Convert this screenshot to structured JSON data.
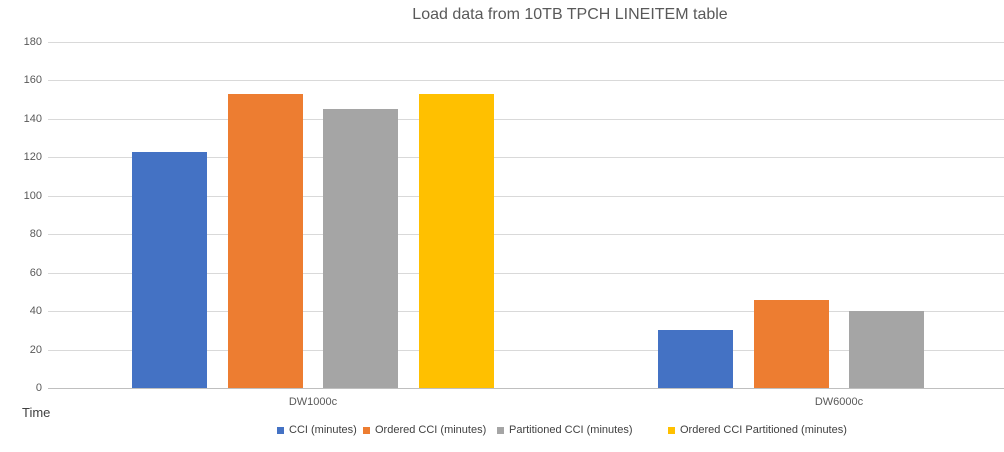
{
  "chart_data": {
    "type": "bar",
    "title": "Load data from 10TB TPCH LINEITEM table",
    "ylabel": "Time",
    "xlabel": "",
    "categories": [
      "DW1000c",
      "DW6000c"
    ],
    "series": [
      {
        "name": "CCI (minutes)",
        "color": "#4472C4",
        "values": [
          123,
          30
        ]
      },
      {
        "name": "Ordered CCI (minutes)",
        "color": "#ED7D31",
        "values": [
          153,
          46
        ]
      },
      {
        "name": "Partitioned CCI (minutes)",
        "color": "#A5A5A5",
        "values": [
          145,
          40
        ]
      },
      {
        "name": "Ordered CCI Partitioned (minutes)",
        "color": "#FFC000",
        "values": [
          153,
          null
        ]
      }
    ],
    "ylim": [
      0,
      180
    ],
    "ytick_step": 20,
    "yticks": [
      0,
      20,
      40,
      60,
      80,
      100,
      120,
      140,
      160,
      180
    ],
    "grid": true,
    "legend_position": "bottom"
  }
}
